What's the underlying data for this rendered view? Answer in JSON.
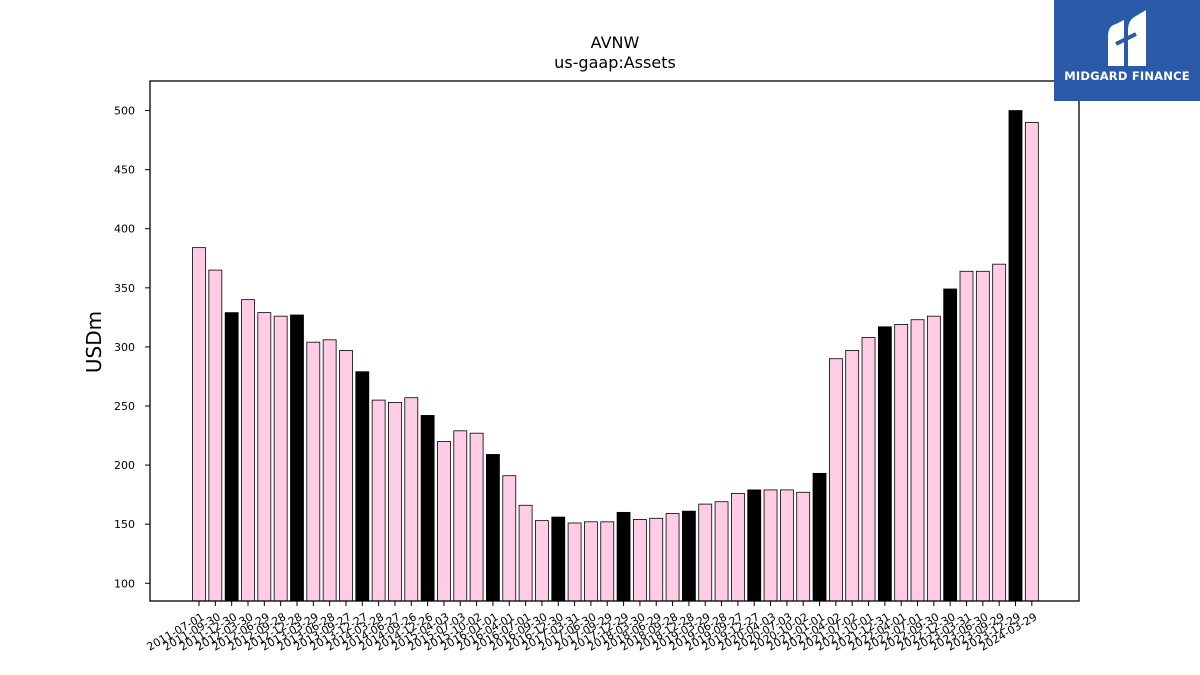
{
  "brand": {
    "name": "MIDGARD FINANCE",
    "bg_color": "#2a5aa8",
    "icon": "midgard-logo-icon"
  },
  "chart_data": {
    "type": "bar",
    "title": "AVNW",
    "subtitle": "us-gaap:Assets",
    "xlabel": "",
    "ylabel": "USDm",
    "ylim": [
      85,
      525
    ],
    "yticks": [
      100,
      150,
      200,
      250,
      300,
      350,
      400,
      450,
      500
    ],
    "colors": {
      "quarter": "#ffcce6",
      "annual": "#000000",
      "edge": "#000000"
    },
    "categories": [
      "2011-07-01",
      "2011-09-30",
      "2011-12-30",
      "2012-03-30",
      "2012-06-29",
      "2012-09-28",
      "2012-12-28",
      "2013-03-29",
      "2013-06-28",
      "2013-09-27",
      "2013-12-27",
      "2014-03-28",
      "2014-06-27",
      "2014-09-26",
      "2014-12-26",
      "2015-04-03",
      "2015-07-03",
      "2015-10-02",
      "2016-01-01",
      "2016-04-01",
      "2016-07-01",
      "2016-09-30",
      "2016-12-30",
      "2017-03-31",
      "2017-06-30",
      "2017-09-29",
      "2017-12-29",
      "2018-03-30",
      "2018-06-29",
      "2018-09-28",
      "2018-12-28",
      "2019-03-29",
      "2019-06-28",
      "2019-09-27",
      "2019-12-27",
      "2020-04-03",
      "2020-07-03",
      "2020-10-02",
      "2021-01-01",
      "2021-04-02",
      "2021-07-02",
      "2021-10-01",
      "2021-12-31",
      "2022-04-01",
      "2022-07-01",
      "2022-09-30",
      "2022-12-30",
      "2023-03-31",
      "2023-06-30",
      "2023-09-29",
      "2023-12-29",
      "2024-03-29"
    ],
    "values": [
      384,
      365,
      329,
      340,
      329,
      326,
      327,
      304,
      306,
      297,
      279,
      255,
      253,
      257,
      242,
      220,
      229,
      227,
      209,
      191,
      166,
      153,
      156,
      151,
      152,
      152,
      160,
      154,
      155,
      159,
      161,
      167,
      169,
      176,
      179,
      179,
      179,
      177,
      193,
      290,
      297,
      308,
      317,
      319,
      323,
      326,
      349,
      364,
      364,
      370,
      500,
      490
    ],
    "annual": [
      false,
      false,
      true,
      false,
      false,
      false,
      true,
      false,
      false,
      false,
      true,
      false,
      false,
      false,
      true,
      false,
      false,
      false,
      true,
      false,
      false,
      false,
      true,
      false,
      false,
      false,
      true,
      false,
      false,
      false,
      true,
      false,
      false,
      false,
      true,
      false,
      false,
      false,
      true,
      false,
      false,
      false,
      true,
      false,
      false,
      false,
      true,
      false,
      false,
      false,
      true,
      false
    ]
  }
}
